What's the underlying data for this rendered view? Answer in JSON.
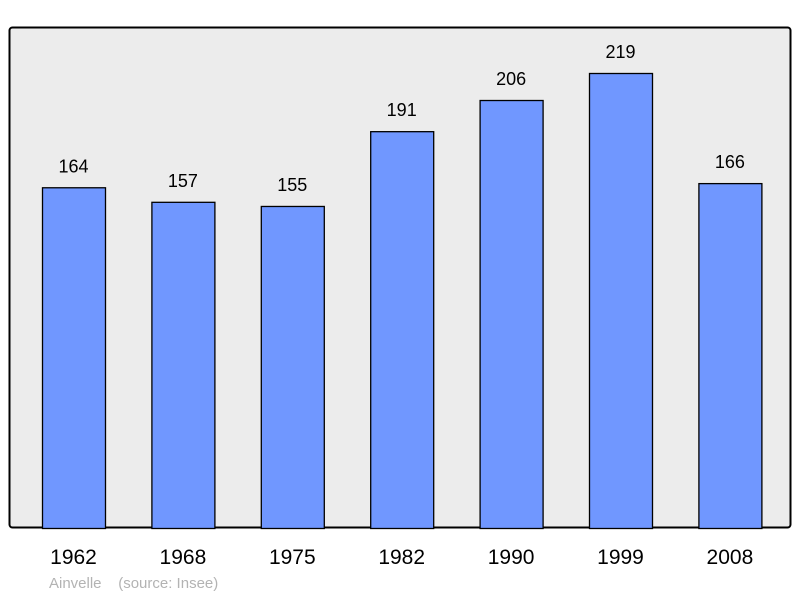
{
  "chart_data": {
    "type": "bar",
    "categories": [
      "1962",
      "1968",
      "1975",
      "1982",
      "1990",
      "1999",
      "2008"
    ],
    "values": [
      164,
      157,
      155,
      191,
      206,
      219,
      166
    ],
    "title": "",
    "xlabel": "",
    "ylabel": "",
    "ylim": [
      0,
      241
    ],
    "grid": false,
    "data_labels": true,
    "colors": {
      "bar": "#7097ff",
      "plot_background": "#ececec",
      "border": "#000000"
    }
  },
  "footer": {
    "place": "Ainvelle",
    "source": "(source: Insee)"
  }
}
